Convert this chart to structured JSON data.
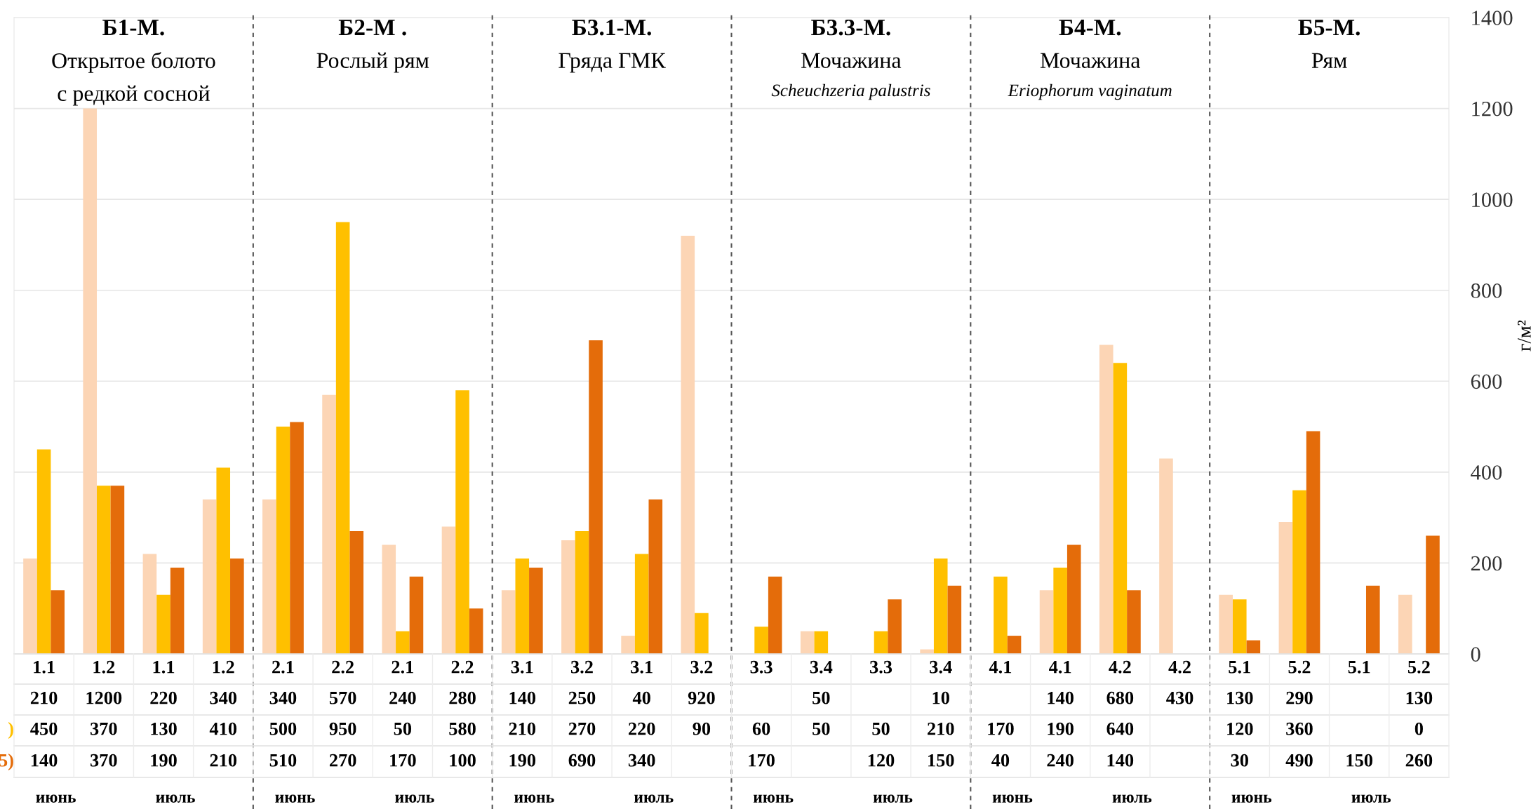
{
  "chart_data": {
    "type": "bar",
    "ylabel": "г/м²",
    "categories": [
      "1.1",
      "1.2",
      "1.1",
      "1.2",
      "2.1",
      "2.2",
      "2.1",
      "2.2",
      "3.1",
      "3.2",
      "3.1",
      "3.2",
      "3.3",
      "3.4",
      "3.3",
      "3.4",
      "4.1",
      "4.1",
      "4.2",
      "4.2",
      "5.1",
      "5.2",
      "5.1",
      "5.2"
    ],
    "series": [
      {
        "color": "#fcd5b5",
        "values": [
          210,
          1200,
          220,
          340,
          340,
          570,
          240,
          280,
          140,
          250,
          40,
          920,
          null,
          50,
          null,
          10,
          null,
          140,
          680,
          430,
          130,
          290,
          null,
          130
        ]
      },
      {
        "name": ")",
        "color": "#ffc000",
        "values": [
          450,
          370,
          130,
          410,
          500,
          950,
          50,
          580,
          210,
          270,
          220,
          90,
          60,
          50,
          50,
          210,
          170,
          190,
          640,
          null,
          120,
          360,
          null,
          0
        ]
      },
      {
        "name": "5)",
        "color": "#e46c0a",
        "values": [
          140,
          370,
          190,
          210,
          510,
          270,
          170,
          100,
          190,
          690,
          340,
          null,
          170,
          null,
          120,
          150,
          40,
          240,
          140,
          null,
          30,
          490,
          150,
          260
        ]
      }
    ],
    "ylim": [
      0,
      1400
    ],
    "yticks": [
      0,
      200,
      400,
      600,
      800,
      1000,
      1200,
      1400
    ],
    "grid": "y",
    "data_labels": true,
    "annotations": [
      "Б1-М.\nОткрытое болото\nс редкой сосной",
      "Б2-М .\nРослый рям",
      "Б3.1-М.\nГряда ГМК",
      "Б3.3-М.\nМочажина",
      "Б4-М.\nМочажина",
      "Б5-М.\nРям",
      "Scheuchzeria palustris",
      "Eriophorum vaginatum",
      "июнь",
      "июль",
      "июнь",
      "июль",
      "июнь",
      "июль",
      "июнь",
      "июль",
      "июнь",
      "июль",
      "июнь",
      "июль"
    ]
  }
}
